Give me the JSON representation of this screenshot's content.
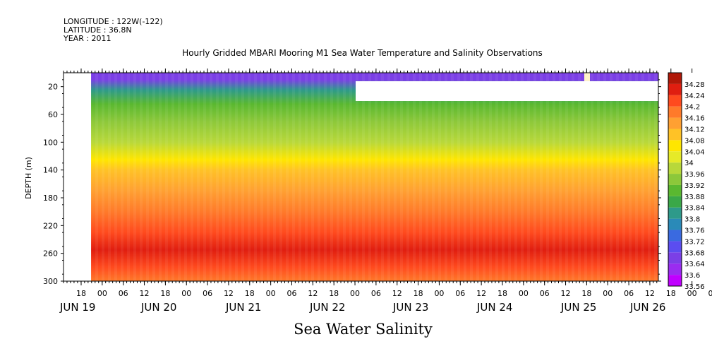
{
  "header": {
    "longitude": "LONGITUDE : 122W(-122)",
    "latitude": "LATITUDE : 36.8N",
    "year": "YEAR : 2011"
  },
  "chart_data": {
    "type": "heatmap",
    "title": "Hourly Gridded MBARI Mooring M1 Sea Water Temperature and Salinity Observations",
    "xlabel": "Sea Water Salinity",
    "ylabel": "DEPTH (m)",
    "x_axis": {
      "hour_ticks": [
        "18",
        "00",
        "06",
        "12",
        "18",
        "00",
        "06",
        "12",
        "18",
        "00",
        "06",
        "12",
        "18",
        "00",
        "06",
        "12",
        "18",
        "00",
        "06",
        "12",
        "18",
        "00",
        "06",
        "12",
        "18",
        "00",
        "06",
        "12",
        "18",
        "00",
        "06",
        "12",
        "18",
        "00",
        "06",
        "12"
      ],
      "date_labels": [
        "JUN 19",
        "JUN 20",
        "JUN 21",
        "JUN 22",
        "JUN 23",
        "JUN 24",
        "JUN 25",
        "JUN 26"
      ]
    },
    "y_axis": {
      "ticks": [
        20,
        60,
        100,
        140,
        180,
        220,
        260,
        300
      ],
      "range": [
        0,
        300
      ],
      "inverted": true
    },
    "colorbar": {
      "levels": [
        33.56,
        33.6,
        33.64,
        33.68,
        33.72,
        33.76,
        33.8,
        33.84,
        33.88,
        33.92,
        33.96,
        34,
        34.04,
        34.08,
        34.12,
        34.16,
        34.2,
        34.24,
        34.28
      ],
      "colors": [
        "#c000ff",
        "#9a2cf0",
        "#7b3fe6",
        "#5b4df0",
        "#3a6ae0",
        "#2a8ab8",
        "#2e9a8a",
        "#3aa848",
        "#5ab830",
        "#8cc83a",
        "#b8d83a",
        "#e6ea28",
        "#ffe600",
        "#ffc226",
        "#ffa032",
        "#ff7a2a",
        "#ff4a1e",
        "#e01e10",
        "#b01808"
      ]
    },
    "salinity_profile": [
      {
        "depth": 10,
        "value": 33.66
      },
      {
        "depth": 25,
        "value": 33.8
      },
      {
        "depth": 45,
        "value": 33.88
      },
      {
        "depth": 70,
        "value": 33.93
      },
      {
        "depth": 100,
        "value": 33.97
      },
      {
        "depth": 125,
        "value": 34.04
      },
      {
        "depth": 140,
        "value": 34.1
      },
      {
        "depth": 170,
        "value": 34.13
      },
      {
        "depth": 200,
        "value": 34.16
      },
      {
        "depth": 230,
        "value": 34.22
      },
      {
        "depth": 255,
        "value": 34.26
      },
      {
        "depth": 280,
        "value": 34.23
      },
      {
        "depth": 300,
        "value": 34.17
      }
    ]
  }
}
